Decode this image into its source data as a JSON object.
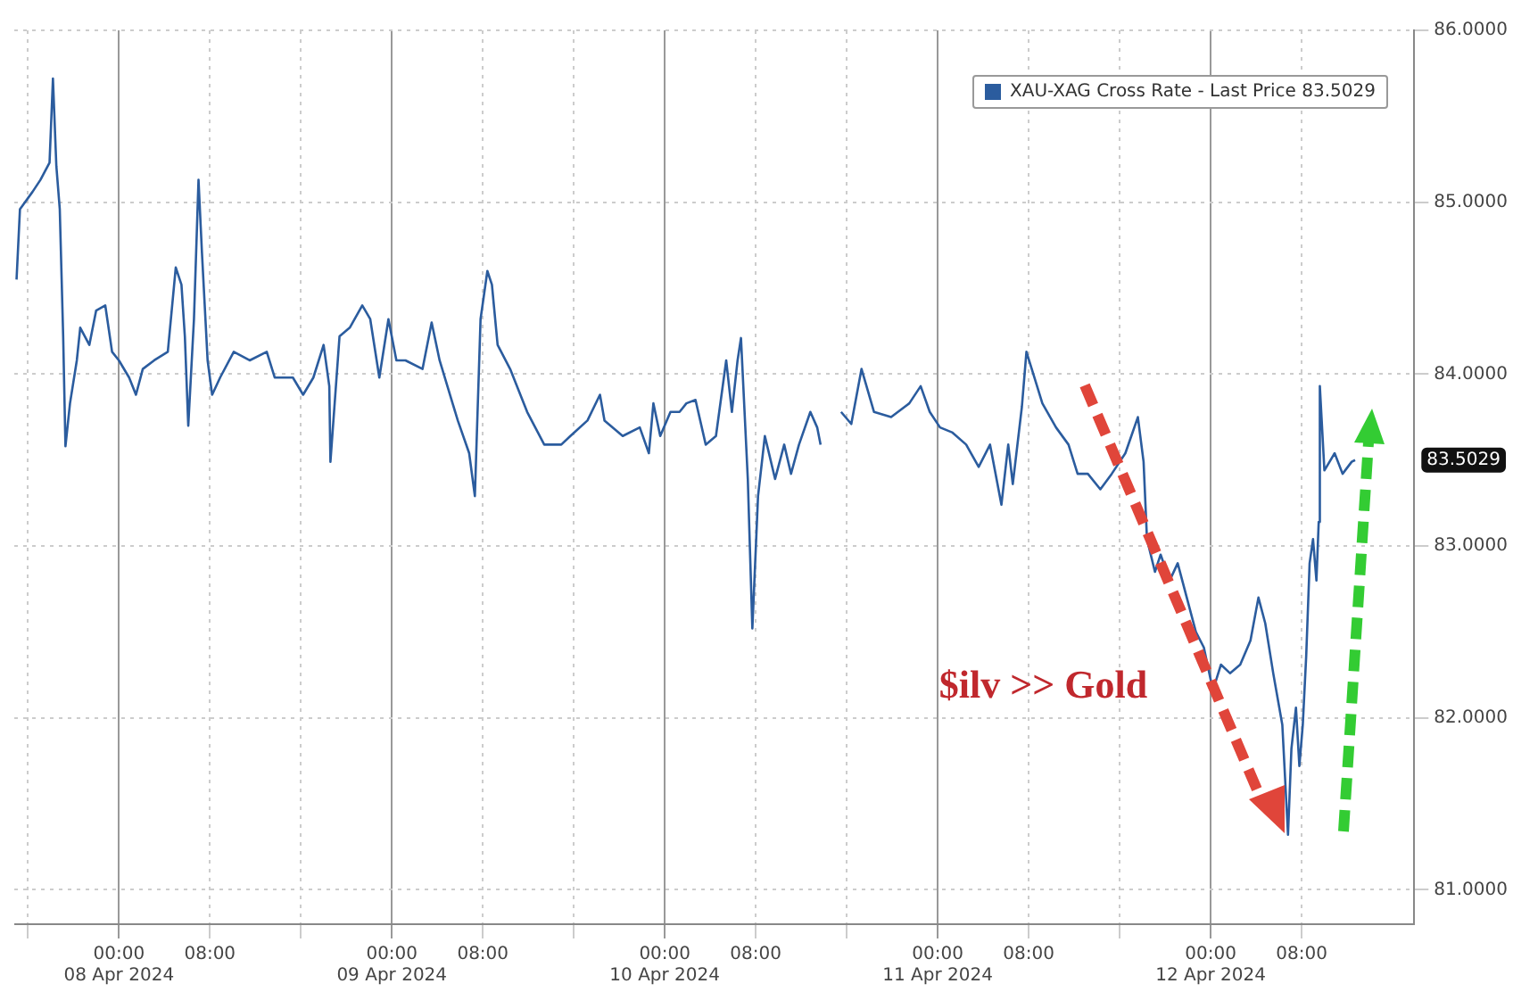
{
  "chart_data": {
    "type": "line",
    "x": [
      "2024-04-07T15:00",
      "2024-04-07T15:18",
      "2024-04-07T16:24",
      "2024-04-07T17:06",
      "2024-04-07T17:54",
      "2024-04-07T18:12",
      "2024-04-07T18:30",
      "2024-04-07T18:48",
      "2024-04-07T19:06",
      "2024-04-07T19:18",
      "2024-04-07T19:42",
      "2024-04-07T20:18",
      "2024-04-07T20:36",
      "2024-04-07T21:24",
      "2024-04-07T22:00",
      "2024-04-07T22:48",
      "2024-04-07T23:24",
      "2024-04-08T00:00",
      "2024-04-08T00:54",
      "2024-04-08T01:30",
      "2024-04-08T02:06",
      "2024-04-08T03:06",
      "2024-04-08T04:18",
      "2024-04-08T05:00",
      "2024-04-08T05:30",
      "2024-04-08T05:48",
      "2024-04-08T06:06",
      "2024-04-08T06:36",
      "2024-04-08T07:00",
      "2024-04-08T07:18",
      "2024-04-08T07:48",
      "2024-04-08T08:12",
      "2024-04-08T08:54",
      "2024-04-08T10:06",
      "2024-04-08T11:30",
      "2024-04-08T13:00",
      "2024-04-08T13:42",
      "2024-04-08T15:18",
      "2024-04-08T16:12",
      "2024-04-08T17:06",
      "2024-04-08T18:00",
      "2024-04-08T18:30",
      "2024-04-08T18:36",
      "2024-04-08T19:24",
      "2024-04-08T20:18",
      "2024-04-08T21:24",
      "2024-04-08T22:06",
      "2024-04-08T22:54",
      "2024-04-08T23:42",
      "2024-04-09T00:24",
      "2024-04-09T01:12",
      "2024-04-09T02:42",
      "2024-04-09T03:30",
      "2024-04-09T04:12",
      "2024-04-09T05:48",
      "2024-04-09T06:48",
      "2024-04-09T07:18",
      "2024-04-09T07:48",
      "2024-04-09T08:24",
      "2024-04-09T08:48",
      "2024-04-09T09:18",
      "2024-04-09T10:24",
      "2024-04-09T11:54",
      "2024-04-09T13:24",
      "2024-04-09T14:54",
      "2024-04-09T15:42",
      "2024-04-09T17:12",
      "2024-04-09T18:18",
      "2024-04-09T18:42",
      "2024-04-09T20:18",
      "2024-04-09T21:48",
      "2024-04-09T22:36",
      "2024-04-09T23:00",
      "2024-04-09T23:36",
      "2024-04-10T00:30",
      "2024-04-10T01:18",
      "2024-04-10T01:54",
      "2024-04-10T02:42",
      "2024-04-10T03:36",
      "2024-04-10T04:30",
      "2024-04-10T05:24",
      "2024-04-10T05:54",
      "2024-04-10T06:24",
      "2024-04-10T06:42",
      "2024-04-10T07:18",
      "2024-04-10T07:42",
      "2024-04-10T08:12",
      "2024-04-10T08:48",
      "2024-04-10T09:42",
      "2024-04-10T10:30",
      "2024-04-10T11:06",
      "2024-04-10T11:48",
      "2024-04-10T12:48",
      "2024-04-10T13:24",
      "2024-04-10T13:42",
      "2024-04-10T14:30",
      "2024-04-10T15:30",
      "2024-04-10T16:24",
      "2024-04-10T17:18",
      "2024-04-10T18:24",
      "2024-04-10T19:54",
      "2024-04-10T21:30",
      "2024-04-10T22:30",
      "2024-04-10T23:18",
      "2024-04-11T00:12",
      "2024-04-11T01:18",
      "2024-04-11T02:30",
      "2024-04-11T03:36",
      "2024-04-11T04:36",
      "2024-04-11T05:36",
      "2024-04-11T06:12",
      "2024-04-11T06:36",
      "2024-04-11T07:24",
      "2024-04-11T07:48",
      "2024-04-11T08:30",
      "2024-04-11T09:12",
      "2024-04-11T10:24",
      "2024-04-11T11:30",
      "2024-04-11T12:18",
      "2024-04-11T13:12",
      "2024-04-11T14:18",
      "2024-04-11T15:18",
      "2024-04-11T16:30",
      "2024-04-11T17:36",
      "2024-04-11T18:06",
      "2024-04-11T18:24",
      "2024-04-11T19:06",
      "2024-04-11T19:36",
      "2024-04-11T20:24",
      "2024-04-11T21:06",
      "2024-04-11T21:54",
      "2024-04-11T22:42",
      "2024-04-11T23:24",
      "2024-04-12T00:12",
      "2024-04-12T00:54",
      "2024-04-12T01:42",
      "2024-04-12T02:36",
      "2024-04-12T03:30",
      "2024-04-12T04:12",
      "2024-04-12T04:48",
      "2024-04-12T05:30",
      "2024-04-12T06:18",
      "2024-04-12T06:48",
      "2024-04-12T07:06",
      "2024-04-12T07:30",
      "2024-04-12T07:48",
      "2024-04-12T08:06",
      "2024-04-12T08:24",
      "2024-04-12T08:42",
      "2024-04-12T09:00",
      "2024-04-12T09:18",
      "2024-04-12T09:30",
      "2024-04-12T09:36",
      "2024-04-12T10:00",
      "2024-04-12T10:54",
      "2024-04-12T11:36",
      "2024-04-12T12:24",
      "2024-04-12T12:42"
    ],
    "series": [
      {
        "name": "XAU-XAG Cross Rate - Last Price 83.5029",
        "color": "#2b5c9e",
        "values": [
          84.55,
          84.96,
          85.06,
          85.13,
          85.23,
          85.72,
          85.21,
          84.96,
          84.22,
          83.58,
          83.83,
          84.08,
          84.27,
          84.17,
          84.37,
          84.4,
          84.13,
          84.08,
          83.98,
          83.88,
          84.03,
          84.08,
          84.13,
          84.62,
          84.52,
          84.22,
          83.7,
          84.32,
          85.13,
          84.71,
          84.08,
          83.88,
          83.98,
          84.13,
          84.08,
          84.13,
          83.98,
          83.98,
          83.88,
          83.98,
          84.17,
          83.93,
          83.49,
          84.22,
          84.27,
          84.4,
          84.32,
          83.98,
          84.32,
          84.08,
          84.08,
          84.03,
          84.3,
          84.08,
          83.73,
          83.54,
          83.29,
          84.32,
          84.6,
          84.52,
          84.17,
          84.03,
          83.78,
          83.59,
          83.59,
          83.64,
          83.73,
          83.88,
          83.73,
          83.64,
          83.69,
          83.54,
          83.83,
          83.64,
          83.78,
          83.78,
          83.83,
          83.85,
          83.59,
          83.64,
          84.08,
          83.78,
          84.08,
          84.21,
          83.39,
          82.52,
          83.29,
          83.64,
          83.39,
          83.59,
          83.42,
          83.59,
          83.78,
          83.69,
          83.59,
          null,
          83.78,
          83.71,
          84.03,
          83.78,
          83.75,
          83.83,
          83.93,
          83.78,
          83.69,
          83.66,
          83.59,
          83.46,
          83.59,
          83.24,
          83.59,
          83.36,
          83.81,
          84.13,
          83.98,
          83.83,
          83.69,
          83.59,
          83.42,
          83.42,
          83.33,
          83.42,
          83.54,
          83.75,
          83.49,
          83.04,
          82.85,
          82.95,
          82.8,
          82.9,
          82.7,
          82.5,
          82.41,
          82.16,
          82.31,
          82.26,
          82.31,
          82.45,
          82.7,
          82.55,
          82.26,
          81.96,
          81.32,
          81.82,
          82.06,
          81.72,
          81.96,
          82.36,
          82.9,
          83.04,
          82.8,
          83.14,
          83.93,
          83.44,
          83.54,
          83.42,
          83.49,
          83.5
        ]
      }
    ],
    "xlim": [
      "2024-04-07T14:48",
      "2024-04-12T17:54"
    ],
    "xticks": [
      {
        "value": "2024-04-07T16:00",
        "label": null
      },
      {
        "value": "2024-04-08T00:00",
        "label": "00:00\n08 Apr 2024"
      },
      {
        "value": "2024-04-08T08:00",
        "label": "08:00"
      },
      {
        "value": "2024-04-08T16:00",
        "label": null
      },
      {
        "value": "2024-04-09T00:00",
        "label": "00:00\n09 Apr 2024"
      },
      {
        "value": "2024-04-09T08:00",
        "label": "08:00"
      },
      {
        "value": "2024-04-09T16:00",
        "label": null
      },
      {
        "value": "2024-04-10T00:00",
        "label": "00:00\n10 Apr 2024"
      },
      {
        "value": "2024-04-10T08:00",
        "label": "08:00"
      },
      {
        "value": "2024-04-10T16:00",
        "label": null
      },
      {
        "value": "2024-04-11T00:00",
        "label": "00:00\n11 Apr 2024"
      },
      {
        "value": "2024-04-11T08:00",
        "label": "08:00"
      },
      {
        "value": "2024-04-11T16:00",
        "label": null
      },
      {
        "value": "2024-04-12T00:00",
        "label": "00:00\n12 Apr 2024"
      },
      {
        "value": "2024-04-12T08:00",
        "label": "08:00"
      }
    ],
    "ylim": [
      80.8,
      86.0
    ],
    "yticks": [
      {
        "value": 81,
        "label": "81.0000"
      },
      {
        "value": 82,
        "label": "82.0000"
      },
      {
        "value": 83,
        "label": "83.0000"
      },
      {
        "value": 84,
        "label": "84.0000"
      },
      {
        "value": 85,
        "label": "85.0000"
      },
      {
        "value": 86,
        "label": "86.0000"
      }
    ],
    "grid": true,
    "legend": "top right",
    "annotations": [
      "$ilv >> Gold",
      "83.5029"
    ]
  }
}
